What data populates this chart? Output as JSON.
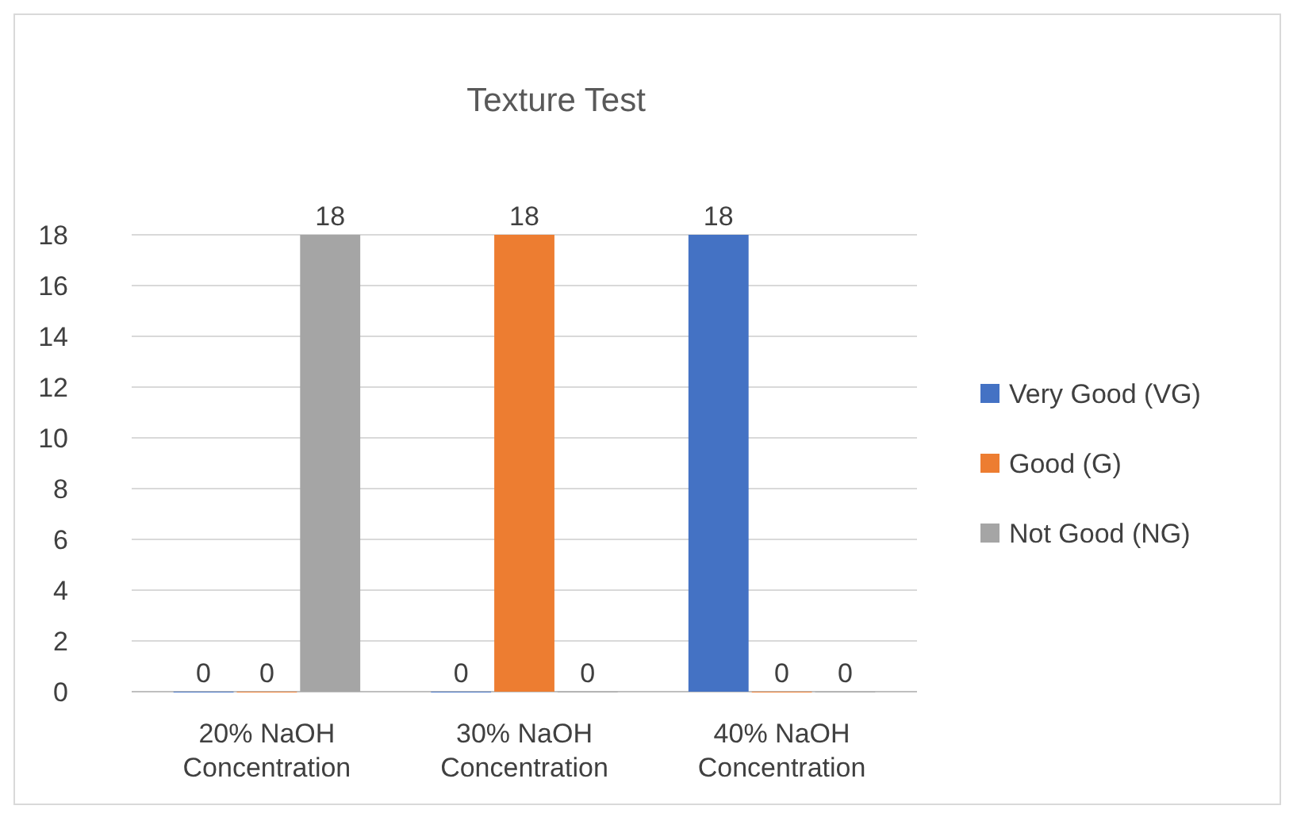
{
  "chart_data": {
    "type": "bar",
    "title": "Texture Test",
    "categories": [
      "20% NaOH Concentration",
      "30% NaOH Concentration",
      "40% NaOH Concentration"
    ],
    "series": [
      {
        "name": "Very Good (VG)",
        "color": "#4472c4",
        "values": [
          0,
          0,
          18
        ]
      },
      {
        "name": "Good (G)",
        "color": "#ed7d31",
        "values": [
          0,
          18,
          0
        ]
      },
      {
        "name": "Not Good (NG)",
        "color": "#a5a5a5",
        "values": [
          18,
          0,
          0
        ]
      }
    ],
    "ylim": [
      0,
      18
    ],
    "yticks": [
      0,
      2,
      4,
      6,
      8,
      10,
      12,
      14,
      16,
      18
    ],
    "grid": "y",
    "legend": "right",
    "data_labels": true
  }
}
